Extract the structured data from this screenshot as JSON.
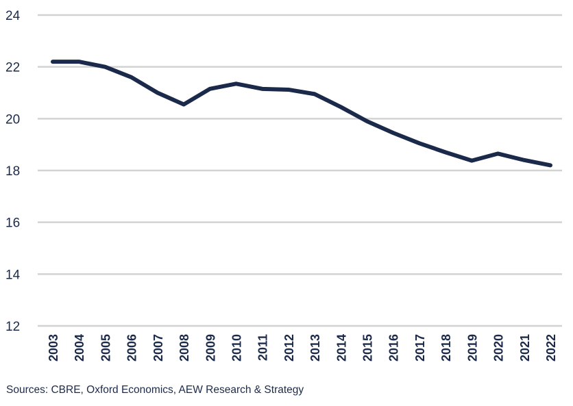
{
  "chart_data": {
    "type": "line",
    "title": "",
    "xlabel": "",
    "ylabel": "",
    "x": [
      "2003",
      "2004",
      "2005",
      "2006",
      "2007",
      "2008",
      "2009",
      "2010",
      "2011",
      "2012",
      "2013",
      "2014",
      "2015",
      "2016",
      "2017",
      "2018",
      "2019",
      "2020",
      "2021",
      "2022"
    ],
    "series": [
      {
        "values": [
          22.2,
          22.2,
          22.0,
          21.6,
          21.0,
          20.55,
          21.15,
          21.35,
          21.15,
          21.12,
          20.95,
          20.45,
          19.9,
          19.45,
          19.05,
          18.7,
          18.38,
          18.65,
          18.4,
          18.2
        ],
        "color": "#1b2a4a"
      }
    ],
    "ylim": [
      12,
      24
    ],
    "yticks": [
      12,
      14,
      16,
      18,
      20,
      22,
      24
    ],
    "grid": true,
    "legend": "none"
  },
  "source": "Sources: CBRE, Oxford Economics, AEW Research & Strategy"
}
